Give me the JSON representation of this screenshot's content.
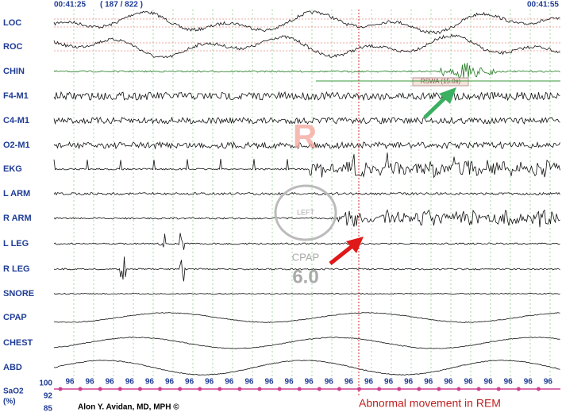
{
  "header": {
    "start_time": "00:41:25",
    "epoch": "( 187 / 822 )",
    "end_time": "00:41:55"
  },
  "channels": [
    "LOC",
    "ROC",
    "CHIN",
    "F4-M1",
    "C4-M1",
    "O2-M1",
    "EKG",
    "L ARM",
    "R ARM",
    "L LEG",
    "R LEG",
    "SNORE",
    "CPAP",
    "CHEST",
    "ABD"
  ],
  "annotations": {
    "rswa": "RSWA (15.0s)",
    "stage": "R",
    "position": "LEFT",
    "cpap_label": "CPAP",
    "cpap_value": "6.0",
    "arrow_caption": "Abnormal movement in REM",
    "credit": "Alon Y. Avidan, MD, MPH ©"
  },
  "sao2": {
    "label": "SaO2",
    "unit": "(%)",
    "scale": [
      "100",
      "92",
      "85"
    ],
    "readings": [
      "96",
      "96",
      "96",
      "96",
      "96",
      "96",
      "96",
      "96",
      "96",
      "96",
      "96",
      "96",
      "96",
      "96",
      "96",
      "96",
      "96",
      "96",
      "96",
      "96",
      "96",
      "96",
      "96",
      "96",
      "96"
    ]
  }
}
